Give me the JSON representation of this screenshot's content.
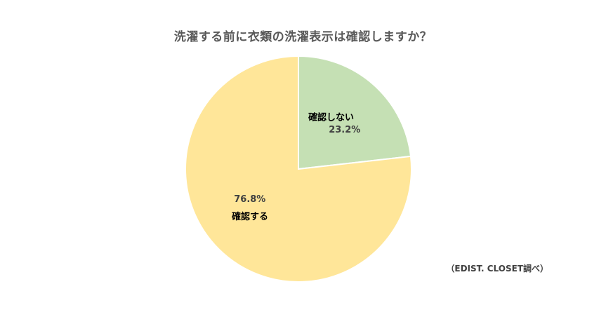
{
  "title": "洗濯する前に衣類の洗濯表示は確認しますか？",
  "source_note": "（EDIST. CLOSET調べ）",
  "chart_data": {
    "type": "pie",
    "title": "洗濯する前に衣類の洗濯表示は確認しますか？",
    "start_angle_deg": 0,
    "direction": "clockwise",
    "legend": "none",
    "slices": [
      {
        "label": "確認しない",
        "value": 23.2,
        "value_label": "23.2%",
        "color": "#c5e0b4"
      },
      {
        "label": "確認する",
        "value": 76.8,
        "value_label": "76.8%",
        "color": "#ffe699"
      }
    ]
  }
}
